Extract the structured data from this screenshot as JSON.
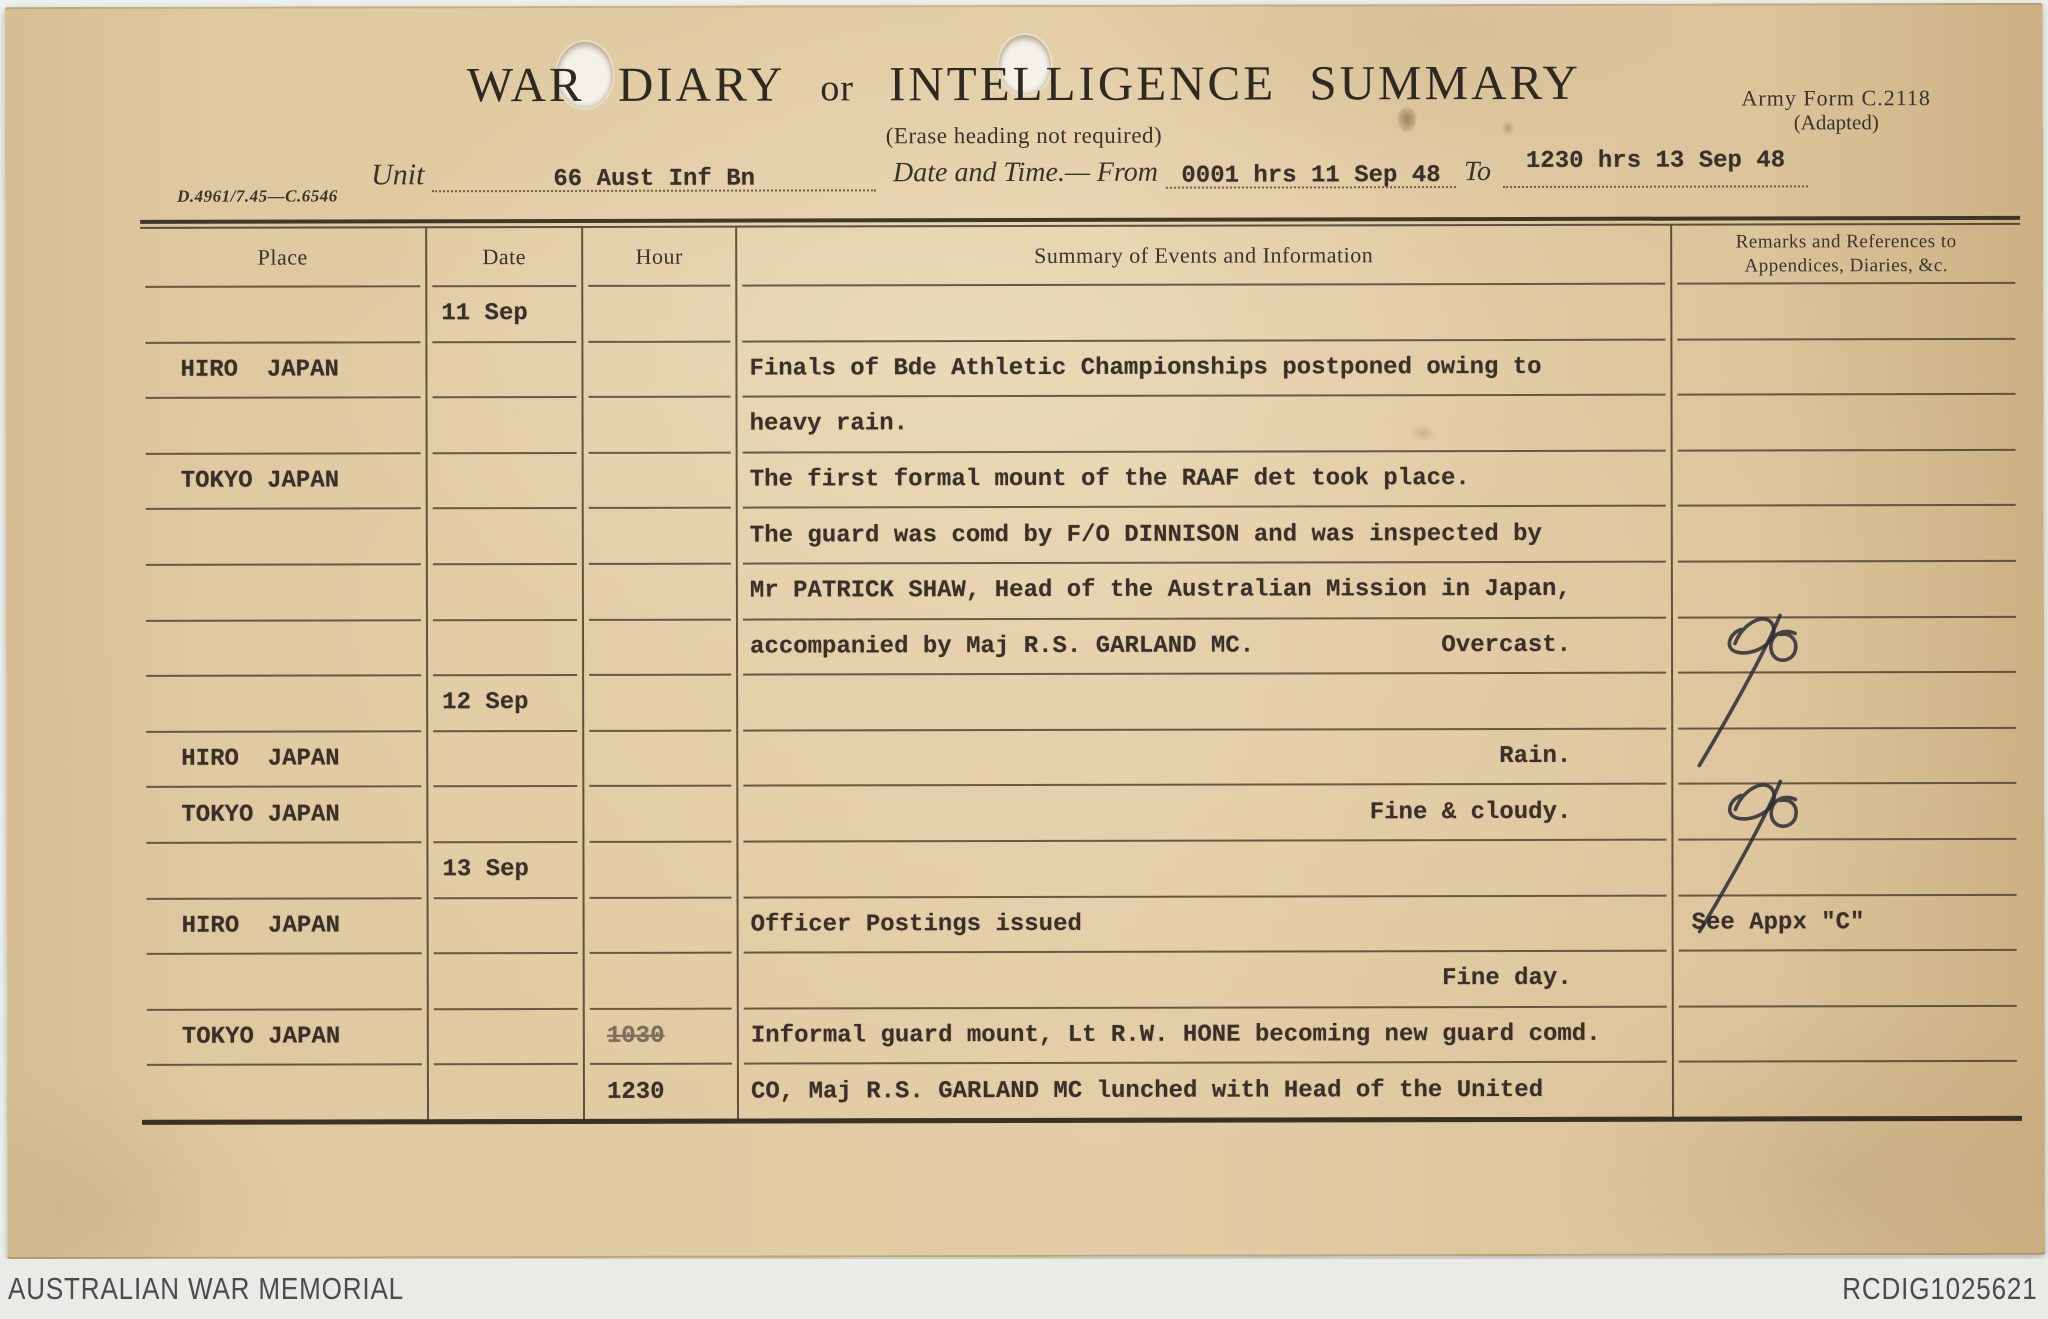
{
  "form": {
    "title_1": "WAR DIARY",
    "title_or": "or",
    "title_2": "INTELLIGENCE SUMMARY",
    "subtitle": "(Erase heading not required)",
    "form_ref": "Army Form C.2118",
    "form_ref_sub": "(Adapted)",
    "print_code": "D.4961/7.45—C.6546",
    "unit_label": "Unit",
    "unit_value": "66 Aust Inf Bn",
    "datetime_label": "Date and Time.— From",
    "datetime_from": "0001 hrs 11 Sep 48",
    "to_label": "To",
    "datetime_to": "1230 hrs 13 Sep 48"
  },
  "table": {
    "headers": {
      "place": "Place",
      "date": "Date",
      "hour": "Hour",
      "summary": "Summary of Events and Information",
      "remarks_line1": "Remarks and References to",
      "remarks_line2": "Appendices, Diaries, &c."
    },
    "rows": [
      {
        "date": "11 Sep"
      },
      {
        "place": "HIRO  JAPAN",
        "summary": "Finals of Bde Athletic Championships postponed owing to"
      },
      {
        "summary": "heavy rain."
      },
      {
        "place": "TOKYO JAPAN",
        "summary": "The first formal mount of the RAAF det took place."
      },
      {
        "summary": "The guard was comd by F/O DINNISON and was inspected by"
      },
      {
        "summary": "Mr PATRICK SHAW, Head of the Australian Mission in Japan,"
      },
      {
        "summary": "accompanied by Maj R.S. GARLAND MC.",
        "weather": "Overcast.",
        "signature": true
      },
      {
        "date": "12 Sep"
      },
      {
        "place": "HIRO  JAPAN",
        "weather": "Rain."
      },
      {
        "place": "TOKYO JAPAN",
        "weather": "Fine & cloudy.",
        "signature": true
      },
      {
        "date": "13 Sep"
      },
      {
        "place": "HIRO  JAPAN",
        "summary": "Officer Postings issued",
        "remarks": "See Appx \"C\""
      },
      {
        "weather": "Fine day."
      },
      {
        "place": "TOKYO JAPAN",
        "hour": "1030",
        "hour_struck": true,
        "summary": "Informal guard mount, Lt R.W. HONE becoming new guard comd."
      },
      {
        "hour": "1230",
        "summary": "CO, Maj R.S. GARLAND MC lunched with Head of the United"
      }
    ]
  },
  "icons": {
    "signature": "signature-flourish",
    "punch_hole": "punch-hole"
  },
  "colors": {
    "paper": "#e2cda6",
    "paper_edge": "#ccb083",
    "ink_print": "#3a332a",
    "ink_typed": "#3a3029",
    "table_line": "#3e3323",
    "footer_bg": "#e9ebe7",
    "footer_text": "#4b4b49",
    "hole": "#f3f1ea"
  },
  "footer": {
    "source": "AUSTRALIAN WAR MEMORIAL",
    "record_id": "RCDIG1025621"
  }
}
